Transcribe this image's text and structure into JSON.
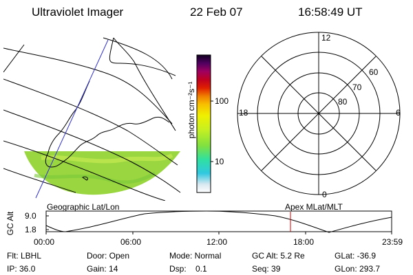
{
  "header": {
    "title": "Ultraviolet Imager",
    "date": "22 Feb 07",
    "time": "16:58:49 UT"
  },
  "colorbar": {
    "label": "photon cm⁻²s⁻¹",
    "ticks": [
      "100",
      "10"
    ]
  },
  "polar_plot": {
    "labels": {
      "top": "12",
      "left": "18",
      "right": "6",
      "bottom": "0"
    },
    "lat_labels": [
      "60",
      "70",
      "80"
    ]
  },
  "map_label": "Geographic Lat/Lon",
  "polar_label": "Apex MLat/MLT",
  "alt_plot": {
    "ylabel": "GC Alt",
    "y_ticks": [
      "9.0",
      "1.8"
    ],
    "x_ticks": [
      "00:00",
      "06:00",
      "12:00",
      "18:00",
      "23:59"
    ]
  },
  "footer": {
    "row1": [
      "Flt: LBHL",
      "Door: Open",
      "Mode: Normal",
      "GC Alt: 5.2 Re",
      "GLat: -36.9"
    ],
    "row2": [
      "IP: 36.0",
      "Gain: 14",
      "Dsp:    0.1",
      "Seq: 39",
      "GLon: 293.7"
    ]
  },
  "colors": {
    "curve": "#000000",
    "marker": "#e00000",
    "orbit": "#3030d0",
    "aurora": "#9ad640"
  }
}
